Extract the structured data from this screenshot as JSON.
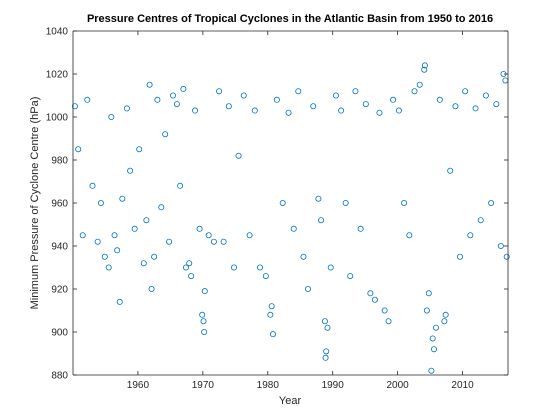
{
  "chart_data": {
    "type": "scatter",
    "title": "Pressure Centres of Tropical Cyclones in the Atlantic Basin from 1950 to 2016",
    "xlabel": "Year",
    "ylabel": "Minimum Pressure of Cyclone Centre (hPa)",
    "xlim": [
      1950,
      2017
    ],
    "ylim": [
      880,
      1040
    ],
    "xticks": [
      1960,
      1970,
      1980,
      1990,
      2000,
      2010
    ],
    "xtick_labels": [
      "1960",
      "1970",
      "1980",
      "1990",
      "2000",
      "2010"
    ],
    "yticks": [
      880,
      900,
      920,
      940,
      960,
      980,
      1000,
      1020,
      1040
    ],
    "ytick_labels": [
      "880",
      "900",
      "920",
      "940",
      "960",
      "980",
      "1000",
      "1020",
      "1040"
    ],
    "grid": false,
    "marker": "circle-open",
    "color": "#0072BD",
    "series": [
      {
        "points": [
          [
            1950.3,
            1005
          ],
          [
            1950.8,
            985
          ],
          [
            1951.5,
            945
          ],
          [
            1952.2,
            1008
          ],
          [
            1953.0,
            968
          ],
          [
            1953.8,
            942
          ],
          [
            1954.3,
            960
          ],
          [
            1954.9,
            935
          ],
          [
            1955.5,
            930
          ],
          [
            1955.9,
            1000
          ],
          [
            1956.4,
            945
          ],
          [
            1956.8,
            938
          ],
          [
            1957.2,
            914
          ],
          [
            1957.6,
            962
          ],
          [
            1958.3,
            1004
          ],
          [
            1958.8,
            975
          ],
          [
            1959.5,
            948
          ],
          [
            1960.2,
            985
          ],
          [
            1960.9,
            932
          ],
          [
            1961.3,
            952
          ],
          [
            1961.8,
            1015
          ],
          [
            1962.1,
            920
          ],
          [
            1962.5,
            935
          ],
          [
            1963.0,
            1008
          ],
          [
            1963.6,
            958
          ],
          [
            1964.2,
            992
          ],
          [
            1964.8,
            942
          ],
          [
            1965.4,
            1010
          ],
          [
            1966.0,
            1006
          ],
          [
            1966.5,
            968
          ],
          [
            1967.0,
            1013
          ],
          [
            1967.4,
            930
          ],
          [
            1967.9,
            932
          ],
          [
            1968.2,
            926
          ],
          [
            1968.8,
            1003
          ],
          [
            1969.5,
            948
          ],
          [
            1969.9,
            908
          ],
          [
            1970.1,
            905
          ],
          [
            1970.2,
            900
          ],
          [
            1970.3,
            919
          ],
          [
            1970.9,
            945
          ],
          [
            1971.7,
            942
          ],
          [
            1972.5,
            1012
          ],
          [
            1973.2,
            942
          ],
          [
            1974.0,
            1005
          ],
          [
            1974.8,
            930
          ],
          [
            1975.5,
            982
          ],
          [
            1976.3,
            1010
          ],
          [
            1977.2,
            945
          ],
          [
            1978.0,
            1003
          ],
          [
            1978.8,
            930
          ],
          [
            1979.7,
            926
          ],
          [
            1980.4,
            908
          ],
          [
            1980.6,
            912
          ],
          [
            1980.8,
            899
          ],
          [
            1981.4,
            1008
          ],
          [
            1982.3,
            960
          ],
          [
            1983.2,
            1002
          ],
          [
            1984.0,
            948
          ],
          [
            1984.7,
            1012
          ],
          [
            1985.5,
            935
          ],
          [
            1986.2,
            920
          ],
          [
            1987.0,
            1005
          ],
          [
            1987.8,
            962
          ],
          [
            1988.2,
            952
          ],
          [
            1988.8,
            905
          ],
          [
            1988.9,
            888
          ],
          [
            1989.0,
            891
          ],
          [
            1989.2,
            902
          ],
          [
            1989.7,
            930
          ],
          [
            1990.5,
            1010
          ],
          [
            1991.3,
            1003
          ],
          [
            1992.0,
            960
          ],
          [
            1992.7,
            926
          ],
          [
            1993.5,
            1012
          ],
          [
            1994.3,
            948
          ],
          [
            1995.1,
            1006
          ],
          [
            1995.8,
            918
          ],
          [
            1996.5,
            915
          ],
          [
            1997.2,
            1002
          ],
          [
            1998.0,
            910
          ],
          [
            1998.6,
            905
          ],
          [
            1999.3,
            1008
          ],
          [
            2000.2,
            1003
          ],
          [
            2001.0,
            960
          ],
          [
            2001.8,
            945
          ],
          [
            2002.6,
            1012
          ],
          [
            2003.4,
            1015
          ],
          [
            2004.1,
            1022
          ],
          [
            2004.2,
            1024
          ],
          [
            2004.5,
            910
          ],
          [
            2004.8,
            918
          ],
          [
            2005.2,
            882
          ],
          [
            2005.4,
            897
          ],
          [
            2005.6,
            892
          ],
          [
            2005.9,
            902
          ],
          [
            2006.5,
            1008
          ],
          [
            2007.2,
            905
          ],
          [
            2007.4,
            908
          ],
          [
            2008.1,
            975
          ],
          [
            2008.9,
            1005
          ],
          [
            2009.6,
            935
          ],
          [
            2010.4,
            1012
          ],
          [
            2011.2,
            945
          ],
          [
            2012.0,
            1004
          ],
          [
            2012.8,
            952
          ],
          [
            2013.6,
            1010
          ],
          [
            2014.4,
            960
          ],
          [
            2015.2,
            1006
          ],
          [
            2015.9,
            940
          ],
          [
            2016.3,
            1020
          ],
          [
            2016.6,
            1017
          ],
          [
            2016.8,
            935
          ]
        ]
      }
    ]
  }
}
